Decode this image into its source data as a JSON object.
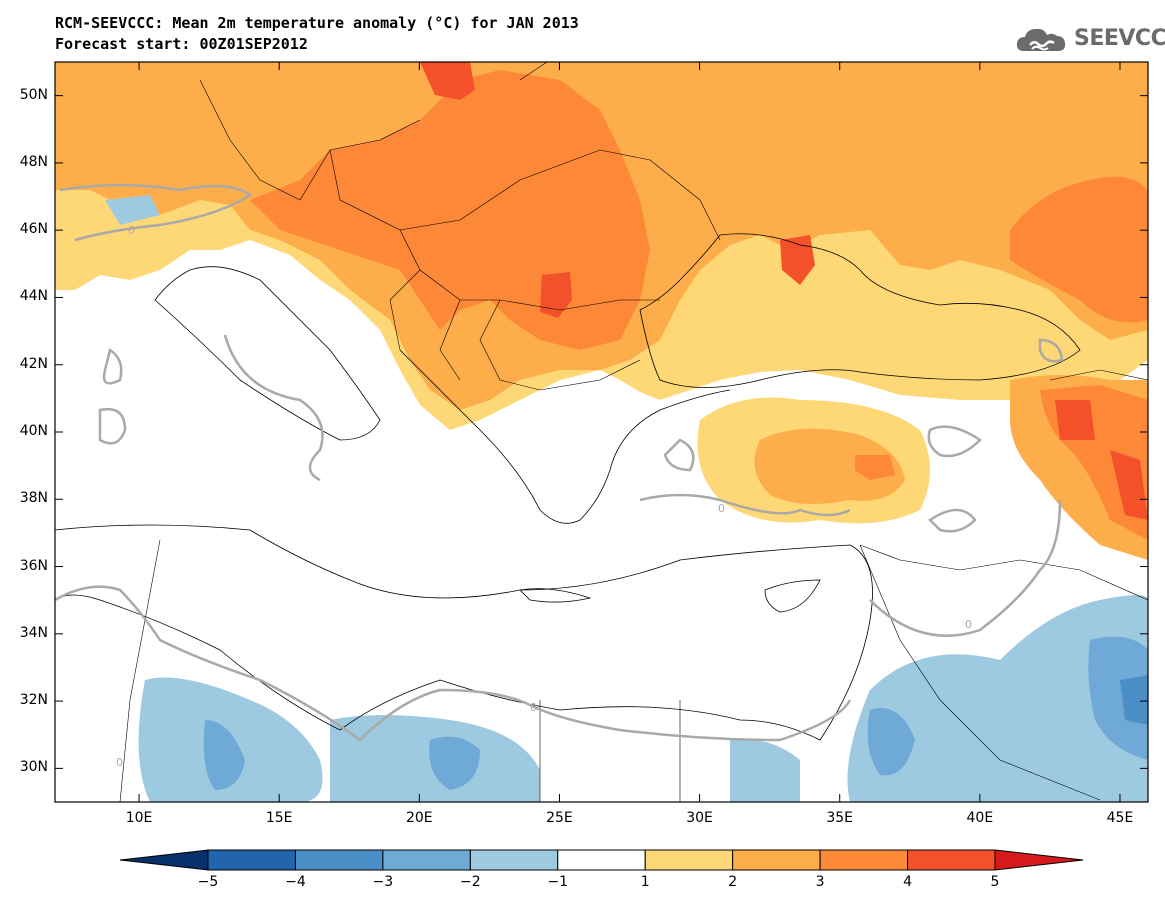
{
  "header": {
    "title": "RCM-SEEVCCC: Mean 2m temperature anomaly (°C) for JAN 2013",
    "subtitle": "Forecast start: 00Z01SEP2012"
  },
  "logo": {
    "text": "SEEVCCC",
    "icon": "cloud-icon"
  },
  "map": {
    "lat_ticks": [
      "50N",
      "48N",
      "46N",
      "44N",
      "42N",
      "40N",
      "38N",
      "36N",
      "34N",
      "32N",
      "30N"
    ],
    "lon_ticks": [
      "10E",
      "15E",
      "20E",
      "25E",
      "30E",
      "35E",
      "40E",
      "45E"
    ],
    "lat_range": [
      29,
      51
    ],
    "lon_range": [
      7,
      46
    ],
    "contour_label": "0"
  },
  "colorbar": {
    "labels": [
      "−5",
      "−4",
      "−3",
      "−2",
      "−1",
      "1",
      "2",
      "3",
      "4",
      "5"
    ],
    "colors": [
      "#08306b",
      "#2166ac",
      "#4a8fc8",
      "#6fa9d6",
      "#9ecae1",
      "#ffffff",
      "#fed876",
      "#fdae4a",
      "#fc8838",
      "#f4502a",
      "#d7191c"
    ]
  },
  "colors": {
    "sea": "#ffffff",
    "border": "#000000",
    "zero_contour": "#a9a9a9"
  }
}
